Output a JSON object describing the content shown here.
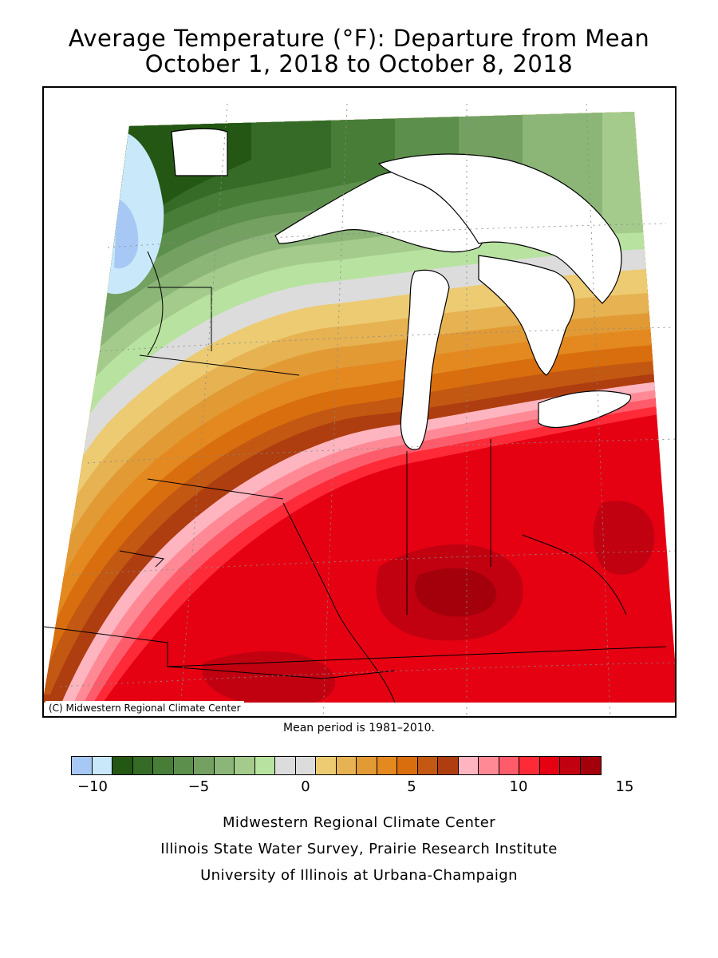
{
  "title": {
    "line1": "Average Temperature (°F): Departure from Mean",
    "line2": "October 1, 2018 to October 8, 2018"
  },
  "map": {
    "credit": "(C) Midwestern Regional Climate Center"
  },
  "mean_period": "Mean period is 1981–2010.",
  "legend": {
    "ticks": [
      "−10",
      "−5",
      "0",
      "5",
      "10",
      "15"
    ],
    "colors": [
      "#a7c8f5",
      "#c9e9fb",
      "#245714",
      "#356b26",
      "#487d38",
      "#5c8f4b",
      "#74a062",
      "#8bb677",
      "#a4cb8b",
      "#b8e2a0",
      "#dcdcdc",
      "#dcdcdc",
      "#eccb73",
      "#e6b252",
      "#e29a35",
      "#e3891f",
      "#d96e0e",
      "#c25811",
      "#ae3d10",
      "#ffb5c0",
      "#ff8a96",
      "#ff5c6b",
      "#ff2a37",
      "#e50012",
      "#c10010",
      "#a4000c"
    ]
  },
  "footer": {
    "line1": "Midwestern Regional Climate Center",
    "line2": "Illinois State Water Survey, Prairie Research Institute",
    "line3": "University of Illinois at Urbana-Champaign"
  }
}
